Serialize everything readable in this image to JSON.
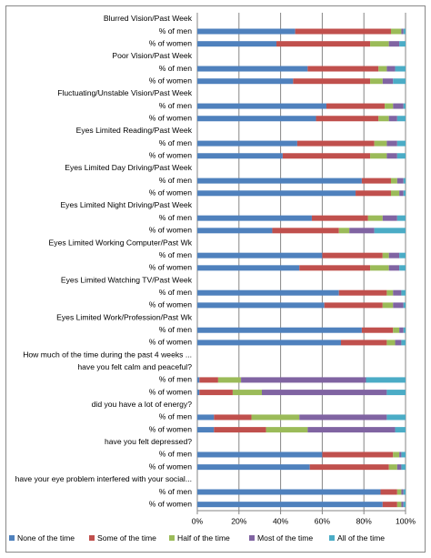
{
  "chart_data": {
    "type": "stacked-bar-horizontal",
    "categories": [
      "Blurred Vision/Past Week",
      "% of men",
      "% of women",
      "Poor Vision/Past Week",
      "% of men",
      "% of women",
      "Fluctuating/Unstable Vision/Past Week",
      "% of men",
      "% of women",
      "Eyes Limited Reading/Past Week",
      "% of men",
      "% of women",
      "Eyes Limited Day Driving/Past Week",
      "% of men",
      "% of women",
      "Eyes Limited Night Driving/Past Week",
      "% of men",
      "% of women",
      "Eyes Limited Working Computer/Past Wk",
      "% of men",
      "% of women",
      "Eyes Limited Watching TV/Past Week",
      "% of men",
      "% of women",
      "Eyes Limited Work/Profession/Past Wk",
      "% of men",
      "% of women",
      "How much of the time during the past 4 weeks ...",
      "have you felt calm and peaceful?",
      "% of men",
      "% of women",
      "did you have a lot of energy?",
      "% of men",
      "% of women",
      "have you felt depressed?",
      "% of men",
      "% of women",
      "have your eye problem interfered with your social...",
      "% of men",
      "% of women"
    ],
    "series": [
      {
        "name": "None of the time",
        "color": "#4f81bd",
        "values": [
          null,
          47,
          38,
          null,
          53,
          46,
          null,
          62,
          57,
          null,
          48,
          41,
          null,
          79,
          76,
          null,
          55,
          36,
          null,
          60,
          49,
          null,
          68,
          61,
          null,
          79,
          69,
          null,
          null,
          1,
          1,
          null,
          8,
          8,
          null,
          60,
          54,
          null,
          88,
          89
        ]
      },
      {
        "name": "Some of the time",
        "color": "#c0504d",
        "values": [
          null,
          46,
          45,
          null,
          34,
          37,
          null,
          28,
          30,
          null,
          37,
          42,
          null,
          14,
          17,
          null,
          27,
          32,
          null,
          29,
          34,
          null,
          23,
          28,
          null,
          15,
          22,
          null,
          null,
          9,
          16,
          null,
          18,
          25,
          null,
          34,
          38,
          null,
          8,
          7
        ]
      },
      {
        "name": "Half of the time",
        "color": "#9bbb59",
        "values": [
          null,
          5,
          9,
          null,
          4,
          6,
          null,
          4,
          5,
          null,
          6,
          8,
          null,
          3,
          4,
          null,
          7,
          5,
          null,
          3,
          9,
          null,
          3,
          5,
          null,
          3,
          4,
          null,
          null,
          11,
          14,
          null,
          23,
          20,
          null,
          3,
          4,
          null,
          2,
          2
        ]
      },
      {
        "name": "Most of the time",
        "color": "#8064a2",
        "values": [
          null,
          1,
          5,
          null,
          4,
          5,
          null,
          5,
          4,
          null,
          5,
          5,
          null,
          3,
          2,
          null,
          7,
          12,
          null,
          5,
          5,
          null,
          4,
          5,
          null,
          2,
          3,
          null,
          null,
          60,
          60,
          null,
          42,
          42,
          null,
          1,
          2,
          null,
          1,
          1
        ]
      },
      {
        "name": "All of the time",
        "color": "#4bacc6",
        "values": [
          null,
          1,
          3,
          null,
          5,
          6,
          null,
          1,
          4,
          null,
          4,
          4,
          null,
          1,
          1,
          null,
          4,
          15,
          null,
          3,
          3,
          null,
          2,
          1,
          null,
          1,
          2,
          null,
          null,
          19,
          9,
          null,
          9,
          5,
          null,
          2,
          2,
          null,
          1,
          1
        ]
      }
    ],
    "xlim": [
      0,
      100
    ],
    "xticks": [
      {
        "value": 0,
        "label": "0%"
      },
      {
        "value": 20,
        "label": "20%"
      },
      {
        "value": 40,
        "label": "40%"
      },
      {
        "value": 60,
        "label": "60%"
      },
      {
        "value": 80,
        "label": "80%"
      },
      {
        "value": 100,
        "label": "100%"
      }
    ],
    "grid": true,
    "legend": "bottom"
  }
}
